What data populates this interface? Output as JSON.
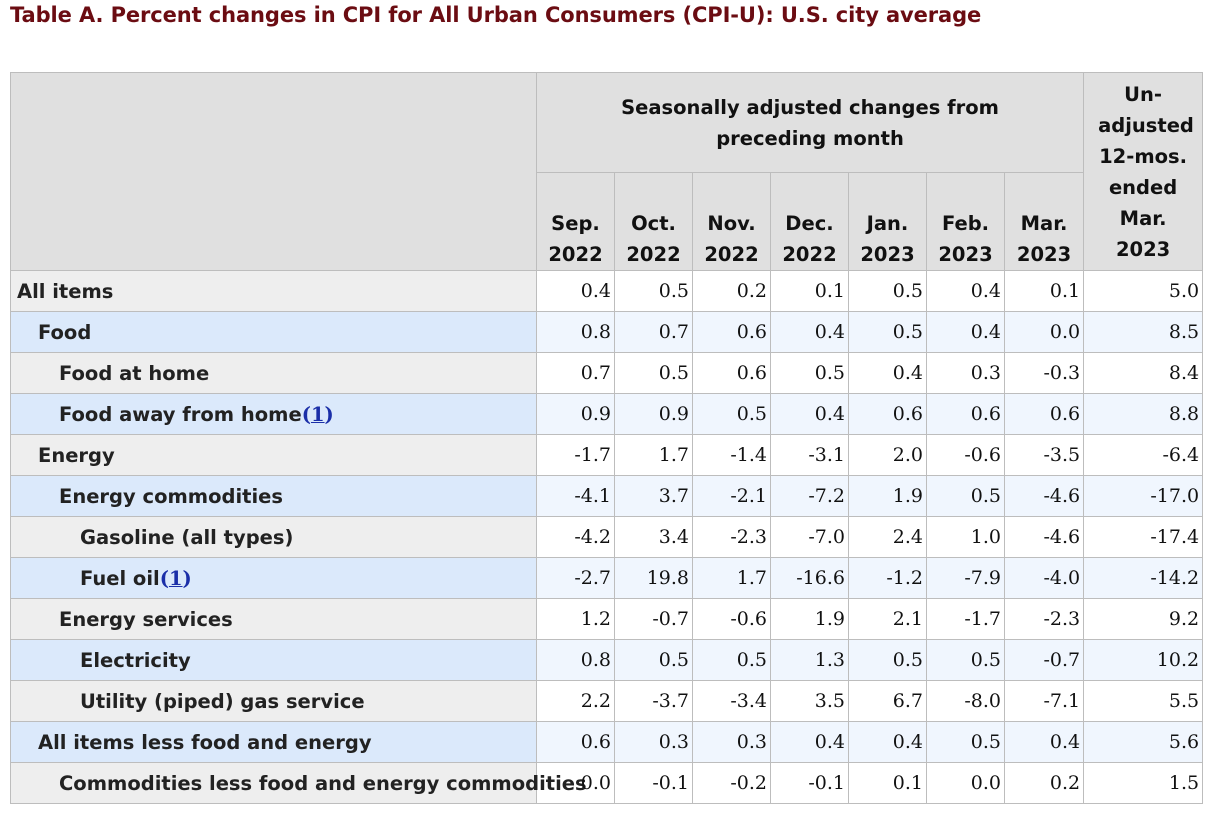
{
  "title": "Table A. Percent changes in CPI for All Urban Consumers (CPI-U): U.S. city average",
  "header": {
    "group": "Seasonally adjusted changes from preceding month",
    "unadjusted": "Un-adjusted 12-mos. ended Mar. 2023",
    "months": [
      {
        "mon": "Sep.",
        "year": "2022"
      },
      {
        "mon": "Oct.",
        "year": "2022"
      },
      {
        "mon": "Nov.",
        "year": "2022"
      },
      {
        "mon": "Dec.",
        "year": "2022"
      },
      {
        "mon": "Jan.",
        "year": "2023"
      },
      {
        "mon": "Feb.",
        "year": "2023"
      },
      {
        "mon": "Mar.",
        "year": "2023"
      }
    ]
  },
  "rows": [
    {
      "label": "All items",
      "footnote": "",
      "values": [
        "0.4",
        "0.5",
        "0.2",
        "0.1",
        "0.5",
        "0.4",
        "0.1",
        "5.0"
      ]
    },
    {
      "label": "Food",
      "footnote": "",
      "values": [
        "0.8",
        "0.7",
        "0.6",
        "0.4",
        "0.5",
        "0.4",
        "0.0",
        "8.5"
      ]
    },
    {
      "label": "Food at home",
      "footnote": "",
      "values": [
        "0.7",
        "0.5",
        "0.6",
        "0.5",
        "0.4",
        "0.3",
        "-0.3",
        "8.4"
      ]
    },
    {
      "label": "Food away from home",
      "footnote": "1",
      "values": [
        "0.9",
        "0.9",
        "0.5",
        "0.4",
        "0.6",
        "0.6",
        "0.6",
        "8.8"
      ]
    },
    {
      "label": "Energy",
      "footnote": "",
      "values": [
        "-1.7",
        "1.7",
        "-1.4",
        "-3.1",
        "2.0",
        "-0.6",
        "-3.5",
        "-6.4"
      ]
    },
    {
      "label": "Energy commodities",
      "footnote": "",
      "values": [
        "-4.1",
        "3.7",
        "-2.1",
        "-7.2",
        "1.9",
        "0.5",
        "-4.6",
        "-17.0"
      ]
    },
    {
      "label": "Gasoline (all types)",
      "footnote": "",
      "values": [
        "-4.2",
        "3.4",
        "-2.3",
        "-7.0",
        "2.4",
        "1.0",
        "-4.6",
        "-17.4"
      ]
    },
    {
      "label": "Fuel oil",
      "footnote": "1",
      "values": [
        "-2.7",
        "19.8",
        "1.7",
        "-16.6",
        "-1.2",
        "-7.9",
        "-4.0",
        "-14.2"
      ]
    },
    {
      "label": "Energy services",
      "footnote": "",
      "values": [
        "1.2",
        "-0.7",
        "-0.6",
        "1.9",
        "2.1",
        "-1.7",
        "-2.3",
        "9.2"
      ]
    },
    {
      "label": "Electricity",
      "footnote": "",
      "values": [
        "0.8",
        "0.5",
        "0.5",
        "1.3",
        "0.5",
        "0.5",
        "-0.7",
        "10.2"
      ]
    },
    {
      "label": "Utility (piped) gas service",
      "footnote": "",
      "values": [
        "2.2",
        "-3.7",
        "-3.4",
        "3.5",
        "6.7",
        "-8.0",
        "-7.1",
        "5.5"
      ]
    },
    {
      "label": "All items less food and energy",
      "footnote": "",
      "values": [
        "0.6",
        "0.3",
        "0.3",
        "0.4",
        "0.4",
        "0.5",
        "0.4",
        "5.6"
      ]
    },
    {
      "label": "Commodities less food and energy commodities",
      "footnote": "",
      "values": [
        "0.0",
        "-0.1",
        "-0.2",
        "-0.1",
        "0.1",
        "0.0",
        "0.2",
        "1.5"
      ]
    }
  ],
  "colors": {
    "title": "#6b0c12",
    "header_bg": "#e0e0e0",
    "row_label_odd": "#eeeeee",
    "row_label_even": "#dbe9fb",
    "row_value_even": "#f0f6fe",
    "footnote_link": "#1b2fa8"
  }
}
